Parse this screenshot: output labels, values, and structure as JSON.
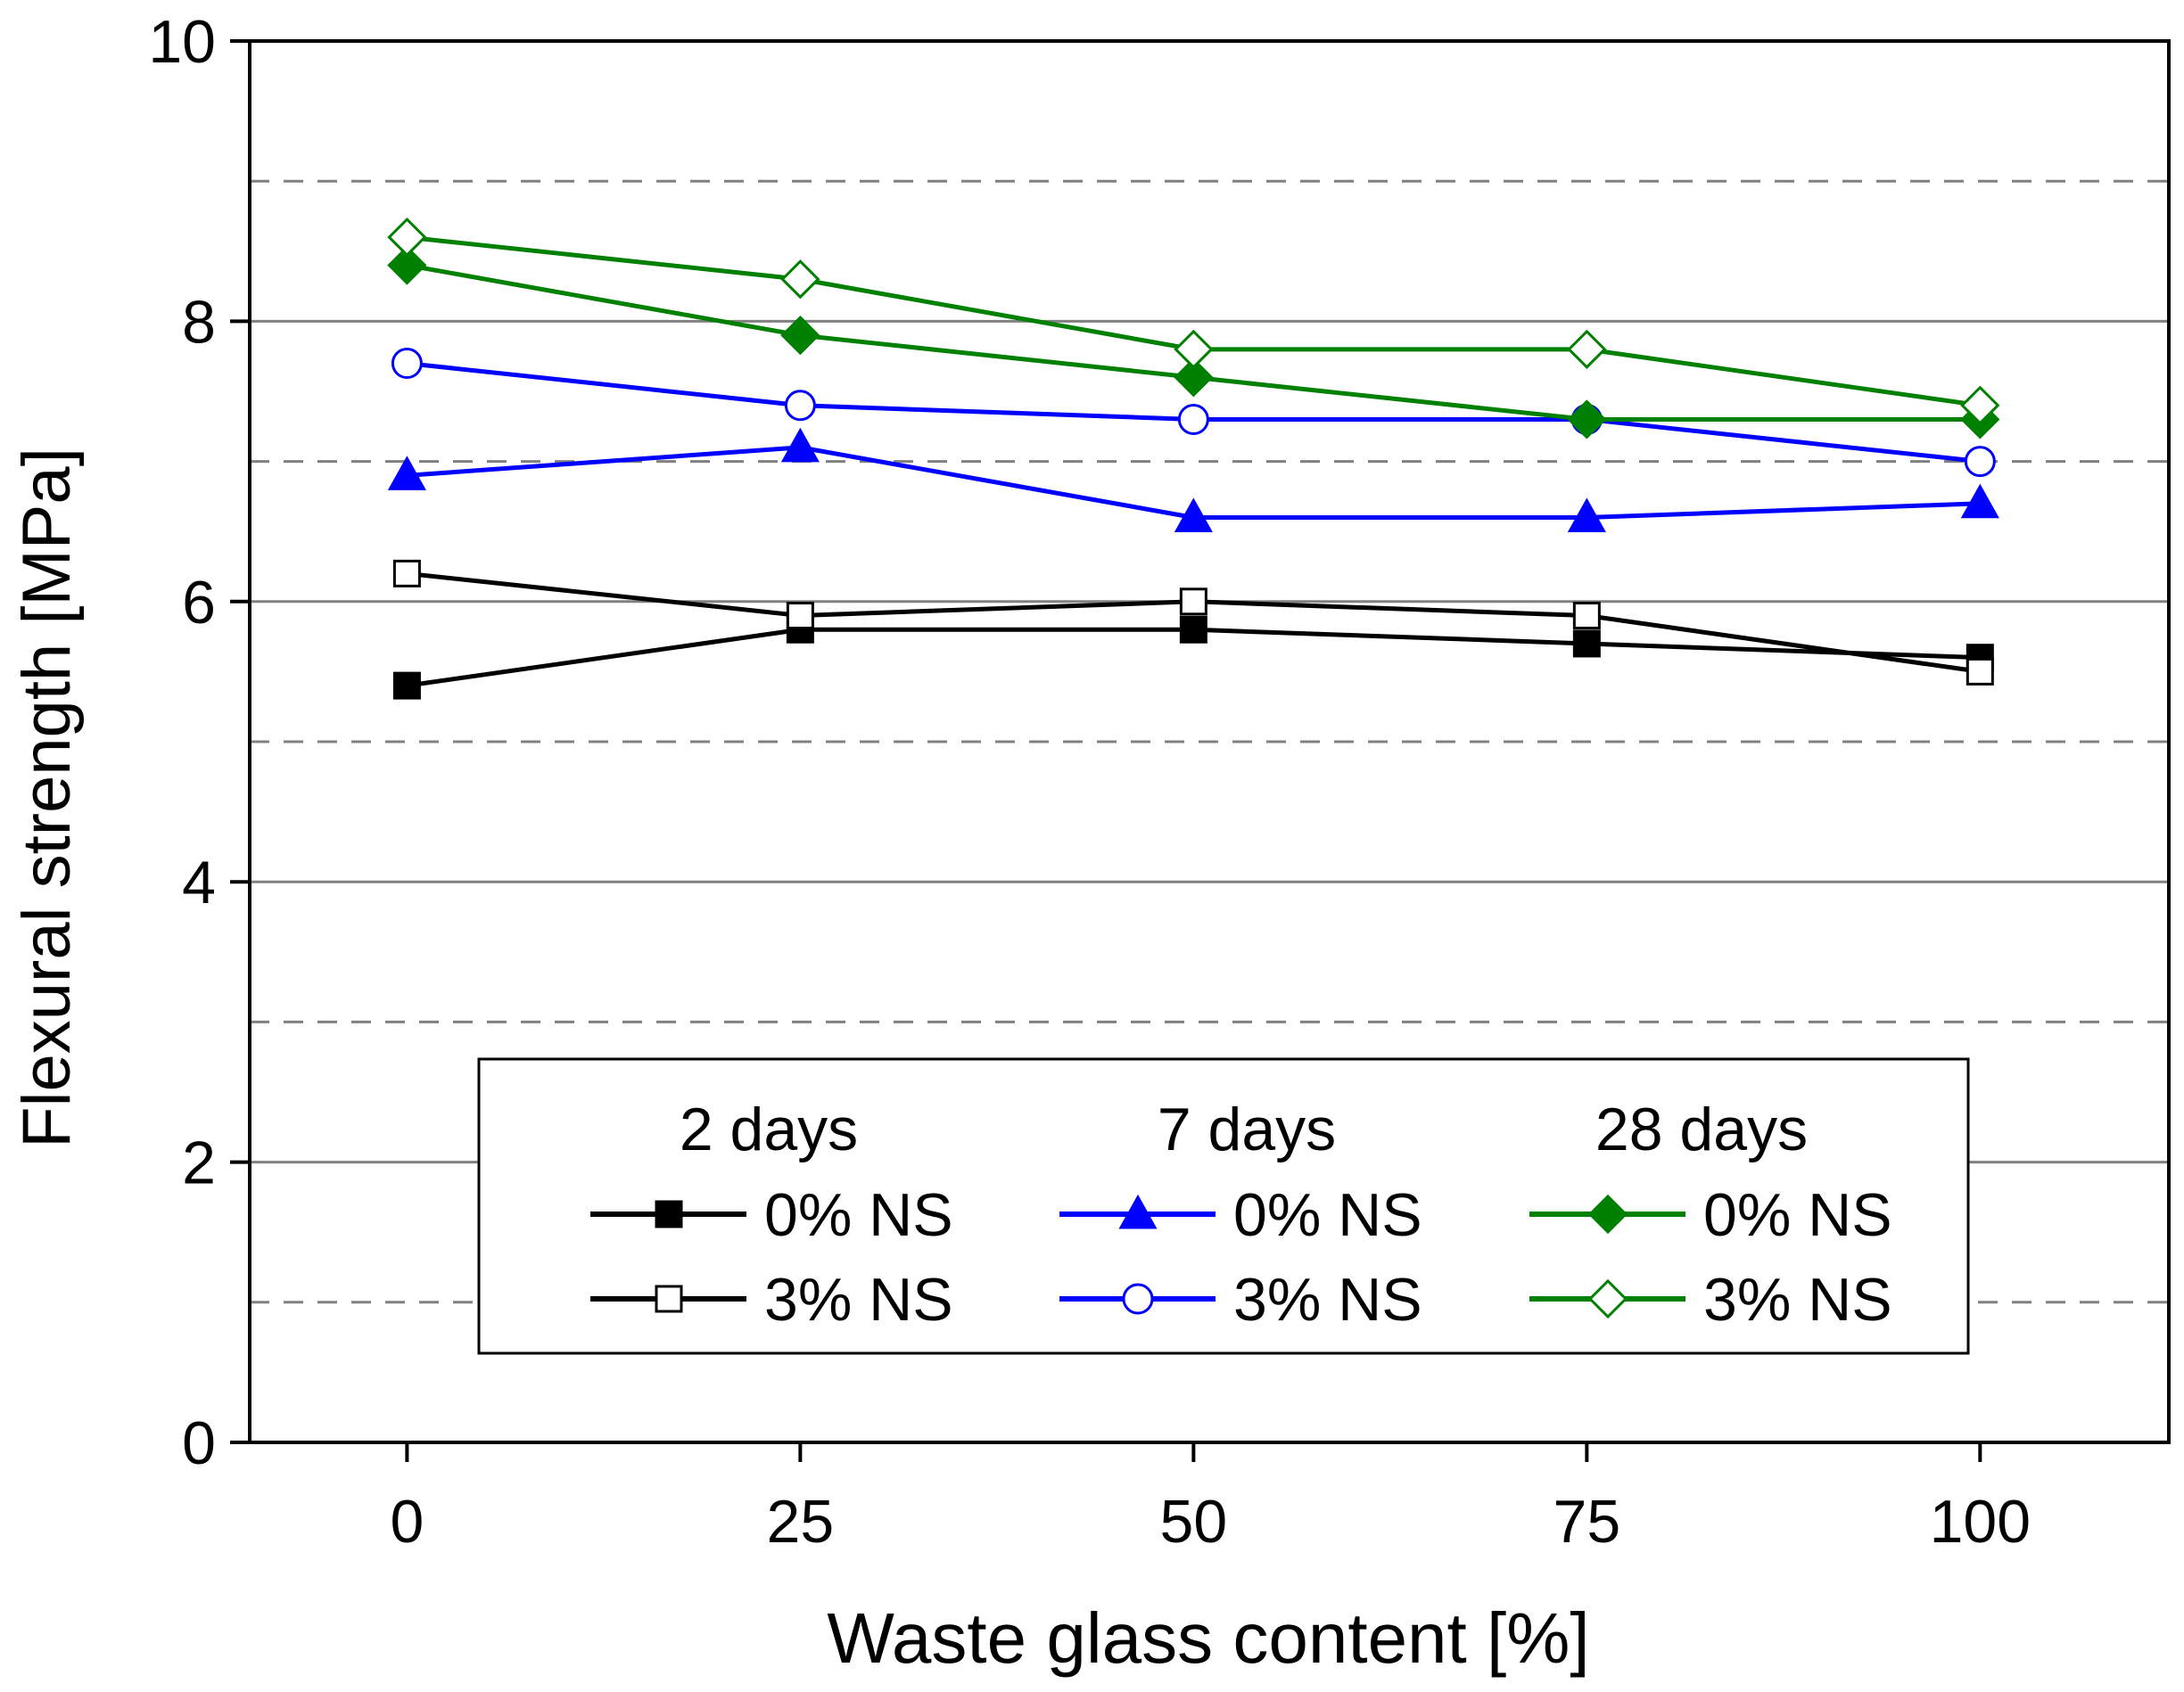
{
  "chart_data": {
    "type": "line",
    "xlabel": "Waste glass content [%]",
    "ylabel": "Flexural strength [MPa]",
    "xlim": [
      -10,
      112
    ],
    "ylim": [
      0,
      10
    ],
    "x": [
      0,
      25,
      50,
      75,
      100
    ],
    "x_ticks": [
      0,
      25,
      50,
      75,
      100
    ],
    "y_ticks": [
      0,
      2,
      4,
      6,
      8,
      10
    ],
    "grid_major": [
      2,
      4,
      6,
      8
    ],
    "grid_minor": [
      1,
      3,
      5,
      7,
      9
    ],
    "legend": {
      "placement": "bottom-center",
      "groups": [
        "2 days",
        "7 days",
        "28 days"
      ]
    },
    "series": [
      {
        "name": "0% NS",
        "group": "2 days",
        "color": "#000000",
        "marker": "square",
        "filled": true,
        "values": [
          5.4,
          5.8,
          5.8,
          5.7,
          5.6
        ]
      },
      {
        "name": "3% NS",
        "group": "2 days",
        "color": "#000000",
        "marker": "square",
        "filled": false,
        "values": [
          6.2,
          5.9,
          6.0,
          5.9,
          5.5
        ]
      },
      {
        "name": "0% NS",
        "group": "7 days",
        "color": "#0000ff",
        "marker": "triangle",
        "filled": true,
        "values": [
          6.9,
          7.1,
          6.6,
          6.6,
          6.7
        ]
      },
      {
        "name": "3% NS",
        "group": "7 days",
        "color": "#0000ff",
        "marker": "circle",
        "filled": false,
        "values": [
          7.7,
          7.4,
          7.3,
          7.3,
          7.0
        ]
      },
      {
        "name": "0% NS",
        "group": "28 days",
        "color": "#008000",
        "marker": "diamond",
        "filled": true,
        "values": [
          8.4,
          7.9,
          7.6,
          7.3,
          7.3
        ]
      },
      {
        "name": "3% NS",
        "group": "28 days",
        "color": "#008000",
        "marker": "diamond",
        "filled": false,
        "values": [
          8.6,
          8.3,
          7.8,
          7.8,
          7.4
        ]
      }
    ]
  }
}
